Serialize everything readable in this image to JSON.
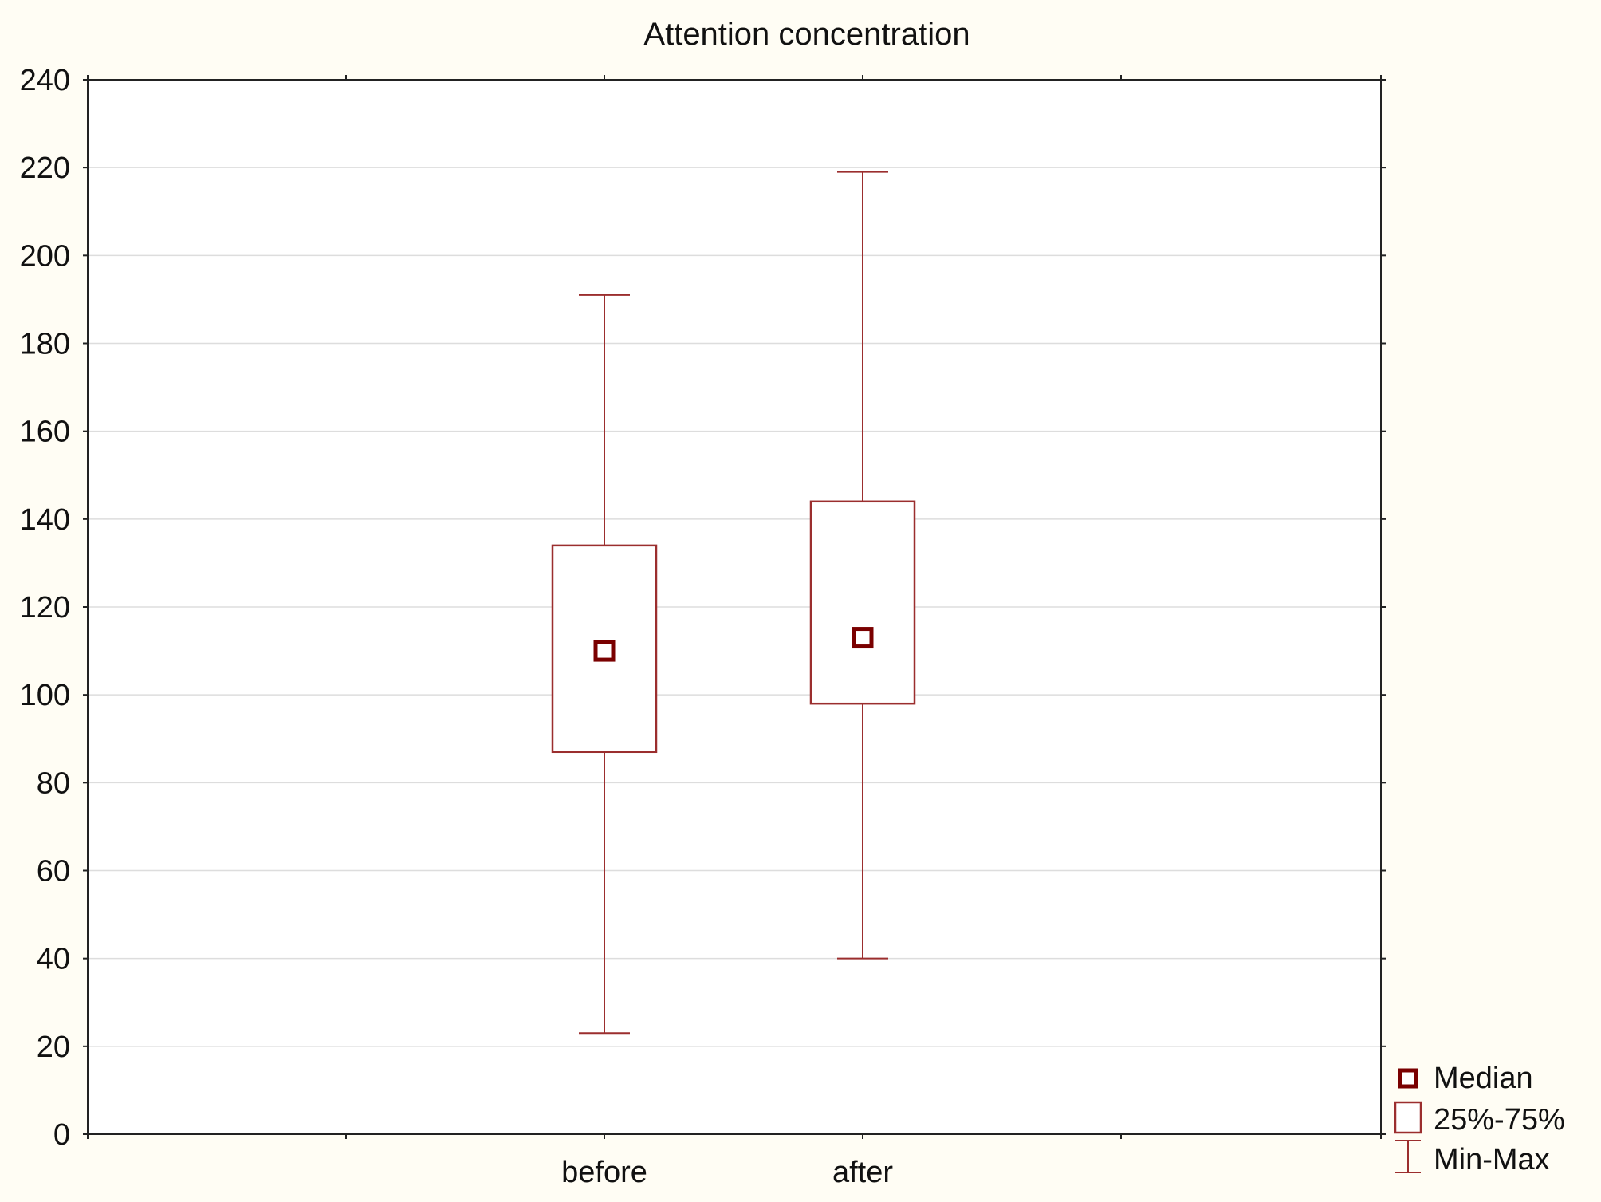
{
  "chart_data": {
    "type": "box",
    "title": "Attention concentration",
    "xlabel": "",
    "ylabel": "",
    "categories": [
      "before",
      "after"
    ],
    "ylim": [
      0,
      240
    ],
    "yticks": [
      0,
      20,
      40,
      60,
      80,
      100,
      120,
      140,
      160,
      180,
      200,
      220,
      240
    ],
    "grid": true,
    "legend_position": "bottom-right",
    "series": [
      {
        "category": "before",
        "min": 23,
        "q1": 87,
        "median": 110,
        "q3": 134,
        "max": 191
      },
      {
        "category": "after",
        "min": 40,
        "q1": 98,
        "median": 113,
        "q3": 144,
        "max": 219
      }
    ],
    "legend": [
      {
        "label": "Median",
        "marker": "median"
      },
      {
        "label": "25%-75%",
        "marker": "box"
      },
      {
        "label": "Min-Max",
        "marker": "whisker"
      }
    ],
    "colors": {
      "box": "#9b2e2e",
      "median": "#7a0000",
      "grid": "#dddddd",
      "axis": "#222222",
      "background": "#fffdf4",
      "plot_background": "#ffffff"
    }
  }
}
